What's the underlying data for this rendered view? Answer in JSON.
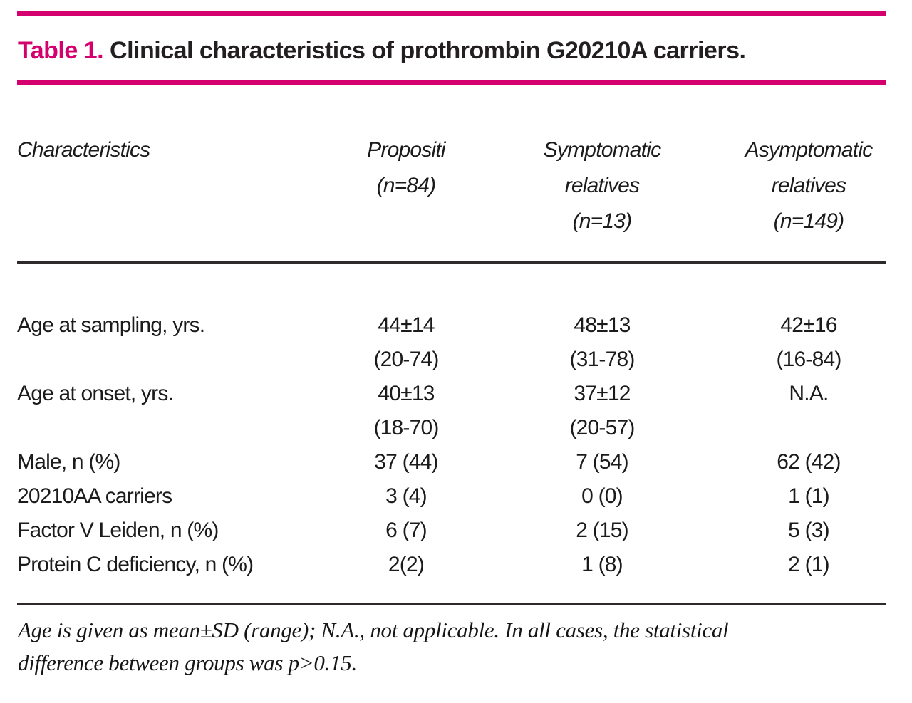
{
  "colors": {
    "accent": "#d4006e",
    "text": "#231f20"
  },
  "title": {
    "label": "Table 1.",
    "text": "Clinical characteristics of prothrombin G20210A carriers."
  },
  "table": {
    "headers": [
      "Characteristics",
      "Propositi\n(n=84)",
      "Symptomatic\nrelatives\n(n=13)",
      "Asymptomatic\nrelatives\n(n=149)"
    ],
    "rows": [
      {
        "label": "Age at sampling, yrs.",
        "values": [
          "44±14\n(20-74)",
          "48±13\n(31-78)",
          "42±16\n(16-84)"
        ]
      },
      {
        "label": "Age at onset, yrs.",
        "values": [
          "40±13\n(18-70)",
          "37±12\n(20-57)",
          "N.A."
        ]
      },
      {
        "label": "Male, n (%)",
        "values": [
          "37 (44)",
          "7 (54)",
          "62 (42)"
        ]
      },
      {
        "label": "20210AA carriers",
        "values": [
          "3 (4)",
          "0 (0)",
          "1 (1)"
        ]
      },
      {
        "label": "Factor V Leiden, n (%)",
        "values": [
          "6 (7)",
          "2 (15)",
          "5 (3)"
        ]
      },
      {
        "label": "Protein C deficiency, n (%)",
        "values": [
          "2(2)",
          "1 (8)",
          "2 (1)"
        ]
      }
    ]
  },
  "footnote": {
    "text": "Age is given as mean±SD (range); N.A., not applicable. In all cases, the statistical\ndifference between groups was p>0.15."
  }
}
